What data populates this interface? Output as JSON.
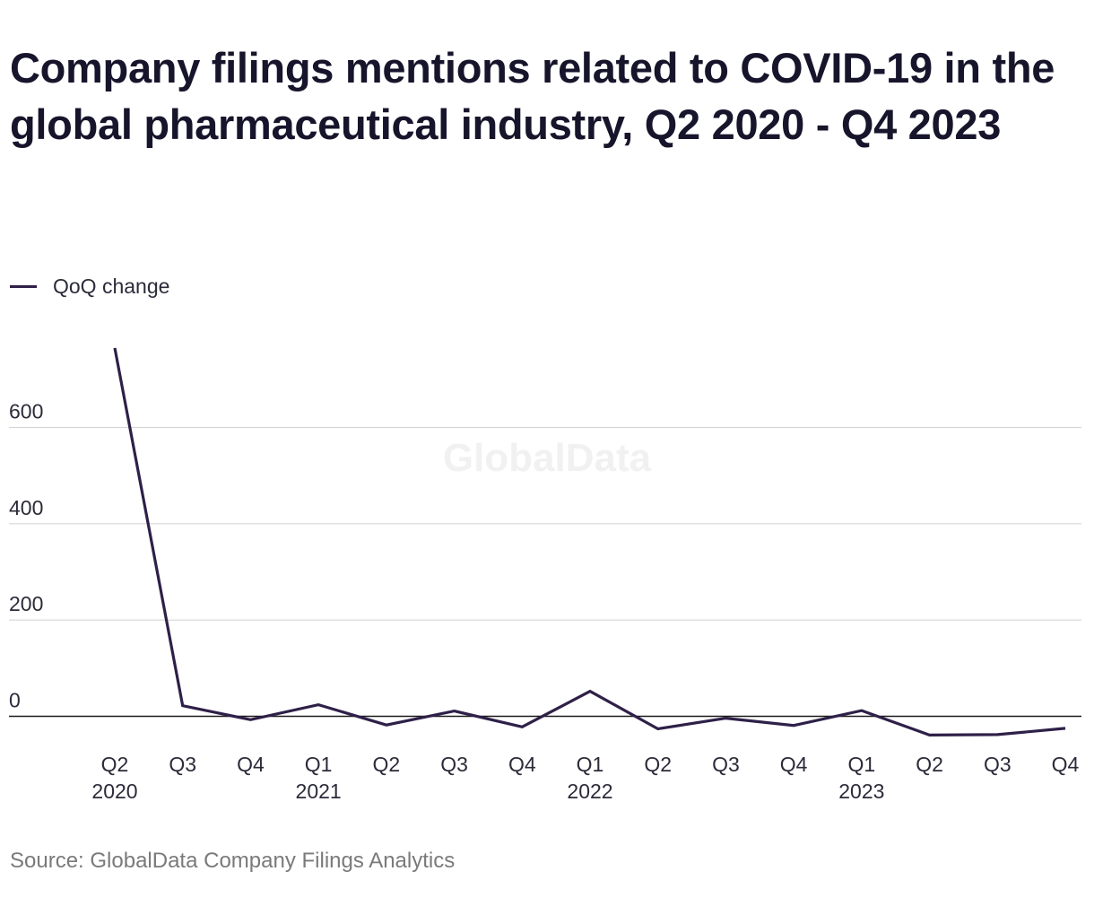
{
  "title": "Company filings mentions related to COVID-19 in the global pharmaceutical industry, Q2 2020 - Q4 2023",
  "legend": {
    "label": "QoQ change",
    "color": "#2e2048"
  },
  "watermark": "GlobalData",
  "source": "Source: GlobalData Company Filings Analytics",
  "chart_data": {
    "type": "line",
    "categories": [
      "Q2 2020",
      "Q3 2020",
      "Q4 2020",
      "Q1 2021",
      "Q2 2021",
      "Q3 2021",
      "Q4 2021",
      "Q1 2022",
      "Q2 2022",
      "Q3 2022",
      "Q4 2022",
      "Q1 2023",
      "Q2 2023",
      "Q3 2023",
      "Q4 2023"
    ],
    "x_tick_labels": [
      {
        "q": "Q2",
        "year": "2020"
      },
      {
        "q": "Q3",
        "year": ""
      },
      {
        "q": "Q4",
        "year": ""
      },
      {
        "q": "Q1",
        "year": "2021"
      },
      {
        "q": "Q2",
        "year": ""
      },
      {
        "q": "Q3",
        "year": ""
      },
      {
        "q": "Q4",
        "year": ""
      },
      {
        "q": "Q1",
        "year": "2022"
      },
      {
        "q": "Q2",
        "year": ""
      },
      {
        "q": "Q3",
        "year": ""
      },
      {
        "q": "Q4",
        "year": ""
      },
      {
        "q": "Q1",
        "year": "2023"
      },
      {
        "q": "Q2",
        "year": ""
      },
      {
        "q": "Q3",
        "year": ""
      },
      {
        "q": "Q4",
        "year": ""
      }
    ],
    "series": [
      {
        "name": "QoQ change",
        "values": [
          765,
          22,
          -7,
          24,
          -18,
          11,
          -22,
          52,
          -26,
          -4,
          -19,
          12,
          -39,
          -38,
          -25
        ]
      }
    ],
    "yticks": [
      0,
      200,
      400,
      600
    ],
    "ylim": [
      -60,
      800
    ],
    "grid": true,
    "legend_position": "top-left",
    "xlabel": "",
    "ylabel": ""
  }
}
